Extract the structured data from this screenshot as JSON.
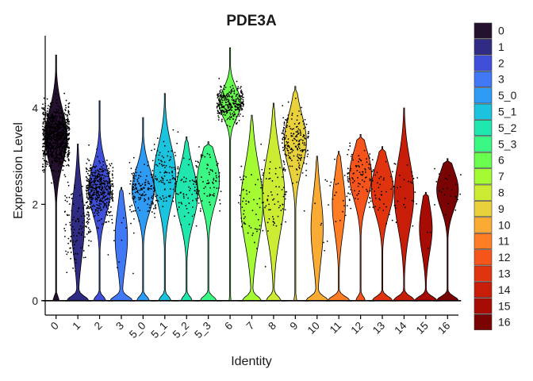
{
  "chart_data": {
    "type": "violin",
    "title": "PDE3A",
    "xlabel": "Identity",
    "ylabel": "Expression Level",
    "ylim": [
      -0.3,
      5.5
    ],
    "y_ticks": [
      0,
      2,
      4
    ],
    "grid": false,
    "legend_position": "right",
    "categories": [
      "0",
      "1",
      "2",
      "3",
      "5_0",
      "5_1",
      "5_2",
      "5_3",
      "6",
      "7",
      "8",
      "9",
      "10",
      "11",
      "12",
      "13",
      "14",
      "15",
      "16"
    ],
    "colors": [
      "#24112E",
      "#302B83",
      "#3F4FD7",
      "#4078F6",
      "#2E9CF5",
      "#1CC3DE",
      "#20E7AE",
      "#3BF884",
      "#6AFE4F",
      "#A4FB34",
      "#CCEC34",
      "#E8D13A",
      "#F9AB33",
      "#FE7D25",
      "#F5551A",
      "#E0340F",
      "#C71D09",
      "#A60C03",
      "#7A0403"
    ],
    "series": [
      {
        "name": "0",
        "max": 5.1,
        "zero_weight": 0.25,
        "mode": 3.4,
        "spread": 0.55,
        "n_points": 900
      },
      {
        "name": "1",
        "max": 3.25,
        "zero_weight": 0.95,
        "mode": 1.6,
        "spread": 0.7,
        "n_points": 120
      },
      {
        "name": "2",
        "max": 4.15,
        "zero_weight": 0.45,
        "mode": 2.3,
        "spread": 0.5,
        "n_points": 500
      },
      {
        "name": "3",
        "max": 2.35,
        "zero_weight": 0.98,
        "mode": 1.3,
        "spread": 0.6,
        "n_points": 12
      },
      {
        "name": "5_0",
        "max": 3.8,
        "zero_weight": 0.45,
        "mode": 2.3,
        "spread": 0.45,
        "n_points": 140
      },
      {
        "name": "5_1",
        "max": 4.3,
        "zero_weight": 0.45,
        "mode": 2.6,
        "spread": 0.6,
        "n_points": 120
      },
      {
        "name": "5_2",
        "max": 3.4,
        "zero_weight": 0.4,
        "mode": 2.2,
        "spread": 0.55,
        "n_points": 70
      },
      {
        "name": "5_3",
        "max": 3.3,
        "zero_weight": 0.55,
        "mode": 2.5,
        "spread": 0.5,
        "n_points": 80
      },
      {
        "name": "6",
        "max": 5.25,
        "zero_weight": 0.08,
        "mode": 4.1,
        "spread": 0.3,
        "n_points": 300
      },
      {
        "name": "7",
        "max": 3.85,
        "zero_weight": 0.6,
        "mode": 2.0,
        "spread": 0.8,
        "n_points": 60
      },
      {
        "name": "8",
        "max": 4.1,
        "zero_weight": 0.5,
        "mode": 2.2,
        "spread": 0.8,
        "n_points": 70
      },
      {
        "name": "9",
        "max": 4.45,
        "zero_weight": 0.12,
        "mode": 3.3,
        "spread": 0.55,
        "n_points": 200
      },
      {
        "name": "10",
        "max": 3.0,
        "zero_weight": 0.99,
        "mode": 1.5,
        "spread": 0.7,
        "n_points": 6
      },
      {
        "name": "11",
        "max": 3.1,
        "zero_weight": 0.98,
        "mode": 2.0,
        "spread": 0.6,
        "n_points": 25
      },
      {
        "name": "12",
        "max": 3.45,
        "zero_weight": 0.35,
        "mode": 2.6,
        "spread": 0.5,
        "n_points": 100
      },
      {
        "name": "13",
        "max": 3.2,
        "zero_weight": 0.65,
        "mode": 2.3,
        "spread": 0.5,
        "n_points": 40
      },
      {
        "name": "14",
        "max": 4.0,
        "zero_weight": 0.75,
        "mode": 2.2,
        "spread": 0.7,
        "n_points": 30
      },
      {
        "name": "15",
        "max": 2.25,
        "zero_weight": 0.99,
        "mode": 1.5,
        "spread": 0.5,
        "n_points": 4
      },
      {
        "name": "16",
        "max": 2.95,
        "zero_weight": 0.7,
        "mode": 2.3,
        "spread": 0.4,
        "n_points": 25
      }
    ]
  }
}
